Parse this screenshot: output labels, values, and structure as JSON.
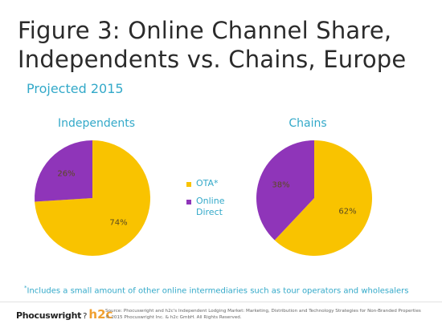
{
  "title_line1": "Figure 3: Online Channel Share,",
  "title_line2": "Independents vs. Chains, Europe",
  "subtitle": "Projected 2015",
  "colors": {
    "ota": "#f9c300",
    "direct": "#8f35b9",
    "accent": "#33a9c9"
  },
  "legend": [
    {
      "label": "OTA*",
      "color": "#f9c300"
    },
    {
      "label": "Online Direct",
      "color": "#8f35b9"
    }
  ],
  "footnote_marker": "*",
  "footnote": "Includes a small amount of other online intermediaries such as tour operators and wholesalers",
  "logo": {
    "text": "Phocuswright",
    "mark": "?",
    "partner": "h2c"
  },
  "source_line1": "Source: Phocuswright and h2c's Independent Lodging Market: Marketing, Distribution and Technology Strategies for Non-Branded Properties",
  "source_line2": "© 2015 Phocuswright Inc. & h2c GmbH. All Rights Reserved.",
  "chart_data": [
    {
      "type": "pie",
      "title": "Independents",
      "categories": [
        "OTA*",
        "Online Direct"
      ],
      "values": [
        74,
        26
      ],
      "labels": [
        "74%",
        "26%"
      ],
      "colors": [
        "#f9c300",
        "#8f35b9"
      ]
    },
    {
      "type": "pie",
      "title": "Chains",
      "categories": [
        "OTA*",
        "Online Direct"
      ],
      "values": [
        62,
        38
      ],
      "labels": [
        "62%",
        "38%"
      ],
      "colors": [
        "#f9c300",
        "#8f35b9"
      ]
    }
  ]
}
